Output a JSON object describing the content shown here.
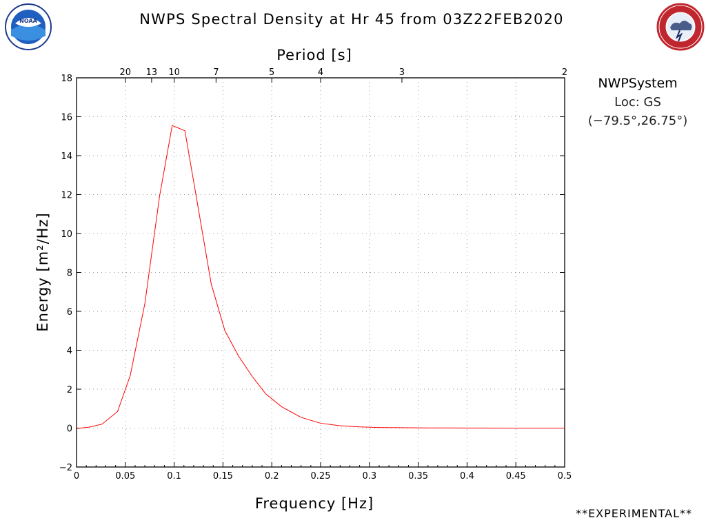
{
  "header": {
    "title": "NWPS Spectral Density at Hr 45 from 03Z22FEB2020",
    "left_logo": "noaa-logo",
    "right_logo": "nws-logo"
  },
  "info": {
    "system": "NWPSystem",
    "location": "Loc: GS",
    "coordinates": "(−79.5°,26.75°)"
  },
  "footer": {
    "label": "**EXPERIMENTAL**"
  },
  "colors": {
    "line": "#ff0000",
    "grid": "#9a9a9a",
    "axis": "#000000"
  },
  "chart_data": {
    "type": "line",
    "title": "NWPS Spectral Density at Hr 45 from 03Z22FEB2020",
    "xlabel": "Frequency [Hz]",
    "ylabel": "Energy [m²/Hz]",
    "top_xlabel": "Period [s]",
    "xlim": [
      0,
      0.5
    ],
    "ylim": [
      -2,
      18
    ],
    "xticks": [
      0,
      0.05,
      0.1,
      0.15,
      0.2,
      0.25,
      0.3,
      0.35,
      0.4,
      0.45,
      0.5
    ],
    "xtick_labels": [
      "0",
      "0.05",
      "0.1",
      "0.15",
      "0.2",
      "0.25",
      "0.3",
      "0.35",
      "0.4",
      "0.45",
      "0.5"
    ],
    "yticks": [
      -2,
      0,
      2,
      4,
      6,
      8,
      10,
      12,
      14,
      16,
      18
    ],
    "ytick_labels": [
      "−2",
      "0",
      "2",
      "4",
      "6",
      "8",
      "10",
      "12",
      "14",
      "16",
      "18"
    ],
    "top_ticks": [
      {
        "label": "20",
        "frequency": 0.05
      },
      {
        "label": "13",
        "frequency": 0.0769
      },
      {
        "label": "10",
        "frequency": 0.1
      },
      {
        "label": "7",
        "frequency": 0.1429
      },
      {
        "label": "5",
        "frequency": 0.2
      },
      {
        "label": "4",
        "frequency": 0.25
      },
      {
        "label": "3",
        "frequency": 0.3333
      },
      {
        "label": "2",
        "frequency": 0.5
      }
    ],
    "grid": true,
    "series": [
      {
        "x": [
          0,
          0.013,
          0.026,
          0.042,
          0.055,
          0.07,
          0.085,
          0.098,
          0.111,
          0.124,
          0.138,
          0.152,
          0.166,
          0.18,
          0.194,
          0.21,
          0.23,
          0.25,
          0.27,
          0.29,
          0.31,
          0.33,
          0.36,
          0.4,
          0.45,
          0.5
        ],
        "values": [
          -0.02,
          0.05,
          0.2,
          0.85,
          2.7,
          6.4,
          11.9,
          15.55,
          15.28,
          11.5,
          7.4,
          5.0,
          3.7,
          2.65,
          1.75,
          1.1,
          0.55,
          0.25,
          0.12,
          0.06,
          0.03,
          0.02,
          0.01,
          0.005,
          0,
          0
        ]
      }
    ]
  }
}
